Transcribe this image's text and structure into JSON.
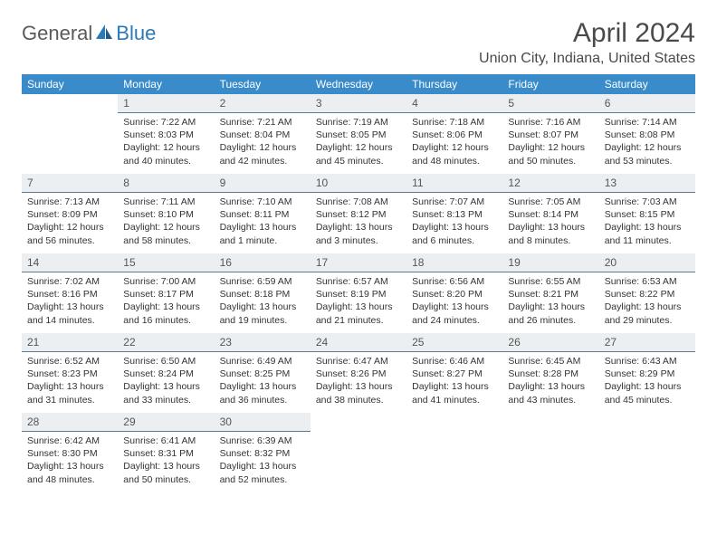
{
  "brand": {
    "word1": "General",
    "word2": "Blue"
  },
  "title": "April 2024",
  "location": "Union City, Indiana, United States",
  "colors": {
    "header_bg": "#3a8bc9",
    "header_text": "#ffffff",
    "daynum_bg": "#eceff1",
    "daynum_border": "#5a7a95",
    "brand_blue": "#2a7ab8",
    "text": "#333333"
  },
  "weekdays": [
    "Sunday",
    "Monday",
    "Tuesday",
    "Wednesday",
    "Thursday",
    "Friday",
    "Saturday"
  ],
  "weeks": [
    [
      null,
      {
        "n": "1",
        "sunrise": "7:22 AM",
        "sunset": "8:03 PM",
        "daylight": "12 hours and 40 minutes."
      },
      {
        "n": "2",
        "sunrise": "7:21 AM",
        "sunset": "8:04 PM",
        "daylight": "12 hours and 42 minutes."
      },
      {
        "n": "3",
        "sunrise": "7:19 AM",
        "sunset": "8:05 PM",
        "daylight": "12 hours and 45 minutes."
      },
      {
        "n": "4",
        "sunrise": "7:18 AM",
        "sunset": "8:06 PM",
        "daylight": "12 hours and 48 minutes."
      },
      {
        "n": "5",
        "sunrise": "7:16 AM",
        "sunset": "8:07 PM",
        "daylight": "12 hours and 50 minutes."
      },
      {
        "n": "6",
        "sunrise": "7:14 AM",
        "sunset": "8:08 PM",
        "daylight": "12 hours and 53 minutes."
      }
    ],
    [
      {
        "n": "7",
        "sunrise": "7:13 AM",
        "sunset": "8:09 PM",
        "daylight": "12 hours and 56 minutes."
      },
      {
        "n": "8",
        "sunrise": "7:11 AM",
        "sunset": "8:10 PM",
        "daylight": "12 hours and 58 minutes."
      },
      {
        "n": "9",
        "sunrise": "7:10 AM",
        "sunset": "8:11 PM",
        "daylight": "13 hours and 1 minute."
      },
      {
        "n": "10",
        "sunrise": "7:08 AM",
        "sunset": "8:12 PM",
        "daylight": "13 hours and 3 minutes."
      },
      {
        "n": "11",
        "sunrise": "7:07 AM",
        "sunset": "8:13 PM",
        "daylight": "13 hours and 6 minutes."
      },
      {
        "n": "12",
        "sunrise": "7:05 AM",
        "sunset": "8:14 PM",
        "daylight": "13 hours and 8 minutes."
      },
      {
        "n": "13",
        "sunrise": "7:03 AM",
        "sunset": "8:15 PM",
        "daylight": "13 hours and 11 minutes."
      }
    ],
    [
      {
        "n": "14",
        "sunrise": "7:02 AM",
        "sunset": "8:16 PM",
        "daylight": "13 hours and 14 minutes."
      },
      {
        "n": "15",
        "sunrise": "7:00 AM",
        "sunset": "8:17 PM",
        "daylight": "13 hours and 16 minutes."
      },
      {
        "n": "16",
        "sunrise": "6:59 AM",
        "sunset": "8:18 PM",
        "daylight": "13 hours and 19 minutes."
      },
      {
        "n": "17",
        "sunrise": "6:57 AM",
        "sunset": "8:19 PM",
        "daylight": "13 hours and 21 minutes."
      },
      {
        "n": "18",
        "sunrise": "6:56 AM",
        "sunset": "8:20 PM",
        "daylight": "13 hours and 24 minutes."
      },
      {
        "n": "19",
        "sunrise": "6:55 AM",
        "sunset": "8:21 PM",
        "daylight": "13 hours and 26 minutes."
      },
      {
        "n": "20",
        "sunrise": "6:53 AM",
        "sunset": "8:22 PM",
        "daylight": "13 hours and 29 minutes."
      }
    ],
    [
      {
        "n": "21",
        "sunrise": "6:52 AM",
        "sunset": "8:23 PM",
        "daylight": "13 hours and 31 minutes."
      },
      {
        "n": "22",
        "sunrise": "6:50 AM",
        "sunset": "8:24 PM",
        "daylight": "13 hours and 33 minutes."
      },
      {
        "n": "23",
        "sunrise": "6:49 AM",
        "sunset": "8:25 PM",
        "daylight": "13 hours and 36 minutes."
      },
      {
        "n": "24",
        "sunrise": "6:47 AM",
        "sunset": "8:26 PM",
        "daylight": "13 hours and 38 minutes."
      },
      {
        "n": "25",
        "sunrise": "6:46 AM",
        "sunset": "8:27 PM",
        "daylight": "13 hours and 41 minutes."
      },
      {
        "n": "26",
        "sunrise": "6:45 AM",
        "sunset": "8:28 PM",
        "daylight": "13 hours and 43 minutes."
      },
      {
        "n": "27",
        "sunrise": "6:43 AM",
        "sunset": "8:29 PM",
        "daylight": "13 hours and 45 minutes."
      }
    ],
    [
      {
        "n": "28",
        "sunrise": "6:42 AM",
        "sunset": "8:30 PM",
        "daylight": "13 hours and 48 minutes."
      },
      {
        "n": "29",
        "sunrise": "6:41 AM",
        "sunset": "8:31 PM",
        "daylight": "13 hours and 50 minutes."
      },
      {
        "n": "30",
        "sunrise": "6:39 AM",
        "sunset": "8:32 PM",
        "daylight": "13 hours and 52 minutes."
      },
      null,
      null,
      null,
      null
    ]
  ],
  "labels": {
    "sunrise": "Sunrise: ",
    "sunset": "Sunset: ",
    "daylight": "Daylight: "
  }
}
